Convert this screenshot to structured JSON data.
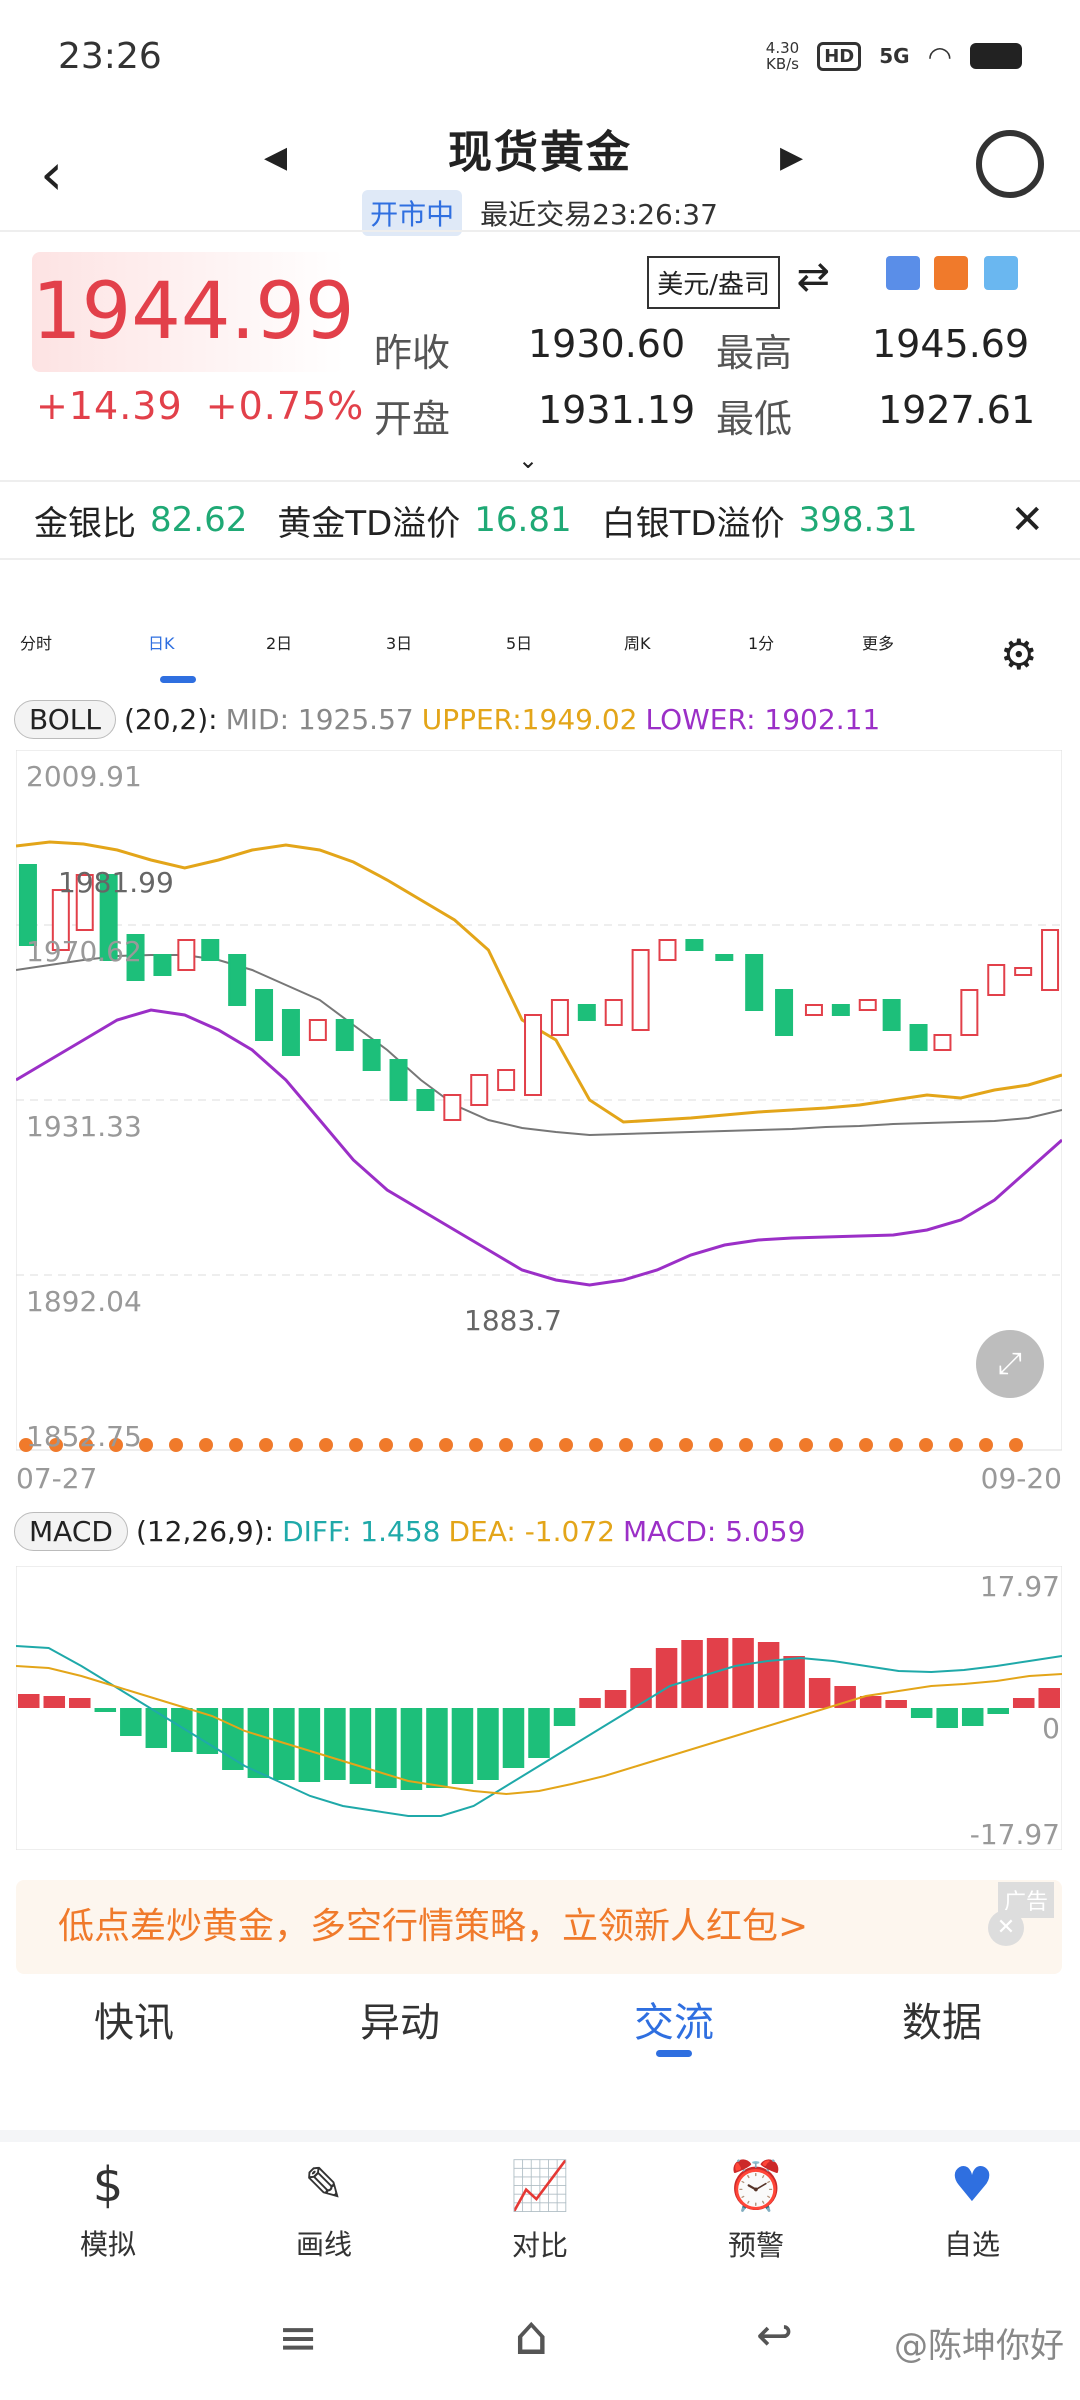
{
  "status": {
    "time": "23:26",
    "net_speed": "4.30",
    "net_unit": "KB/s",
    "hd": "HD",
    "signal": "5G"
  },
  "header": {
    "title": "现货黄金",
    "market_status": "开市中",
    "last_trade": "最近交易23:26:37"
  },
  "quote": {
    "price": "1944.99",
    "change": "+14.39",
    "change_pct": "+0.75%",
    "prev_close_label": "昨收",
    "prev_close": "1930.60",
    "open_label": "开盘",
    "open": "1931.19",
    "high_label": "最高",
    "high": "1945.69",
    "low_label": "最低",
    "low": "1927.61",
    "unit_label": "美元/盎司"
  },
  "ratios": [
    {
      "label": "金银比",
      "value": "82.62"
    },
    {
      "label": "黄金TD溢价",
      "value": "16.81"
    },
    {
      "label": "白银TD溢价",
      "value": "398.31"
    }
  ],
  "period_tabs": [
    "分时",
    "日K",
    "2日",
    "3日",
    "5日",
    "周K",
    "1分",
    "更多"
  ],
  "active_period": "日K",
  "boll": {
    "label": "BOLL",
    "params": "(20,2):",
    "mid": "MID: 1925.57",
    "upper": "UPPER:1949.02",
    "lower": "LOWER: 1902.11"
  },
  "kchart": {
    "ticks": [
      "2009.91",
      "1970.62",
      "1931.33",
      "1892.04",
      "1852.75"
    ],
    "start_date": "07-27",
    "end_date": "09-20",
    "high_marker": "1981.99",
    "low_marker": "1883.7"
  },
  "macd": {
    "label": "MACD",
    "params": "(12,26,9):",
    "diff": "DIFF: 1.458",
    "dea": "DEA: -1.072",
    "macd": "MACD: 5.059",
    "ticks": [
      "17.97",
      "0",
      "-17.97"
    ]
  },
  "chart_data": [
    {
      "type": "candlestick",
      "title": "",
      "ylim": [
        1852.75,
        2009.91
      ],
      "x_range": [
        "07-27",
        "09-20"
      ],
      "series": [
        {
          "name": "BOLL MID",
          "values": [
            1925.57
          ]
        },
        {
          "name": "BOLL UPPER",
          "values": [
            1949.02
          ]
        },
        {
          "name": "BOLL LOWER",
          "values": [
            1902.11
          ]
        }
      ]
    },
    {
      "type": "bar",
      "title": "",
      "ylim": [
        -17.97,
        17.97
      ],
      "series": [
        {
          "name": "DIFF",
          "values": [
            1.458
          ]
        },
        {
          "name": "DEA",
          "values": [
            -1.072
          ]
        },
        {
          "name": "MACD",
          "values": [
            5.059
          ]
        }
      ]
    }
  ],
  "banner": {
    "text": "低点差炒黄金，多空行情策略，立领新人红包>",
    "ad": "广告"
  },
  "section_tabs": [
    "快讯",
    "异动",
    "交流",
    "数据"
  ],
  "active_section": "交流",
  "bottom_nav": [
    {
      "label": "模拟",
      "icon": "dollar-icon"
    },
    {
      "label": "画线",
      "icon": "pen-icon"
    },
    {
      "label": "对比",
      "icon": "compare-icon"
    },
    {
      "label": "预警",
      "icon": "alarm-icon"
    },
    {
      "label": "自选",
      "icon": "heart-icon"
    }
  ],
  "watermark": "@陈坤你好"
}
